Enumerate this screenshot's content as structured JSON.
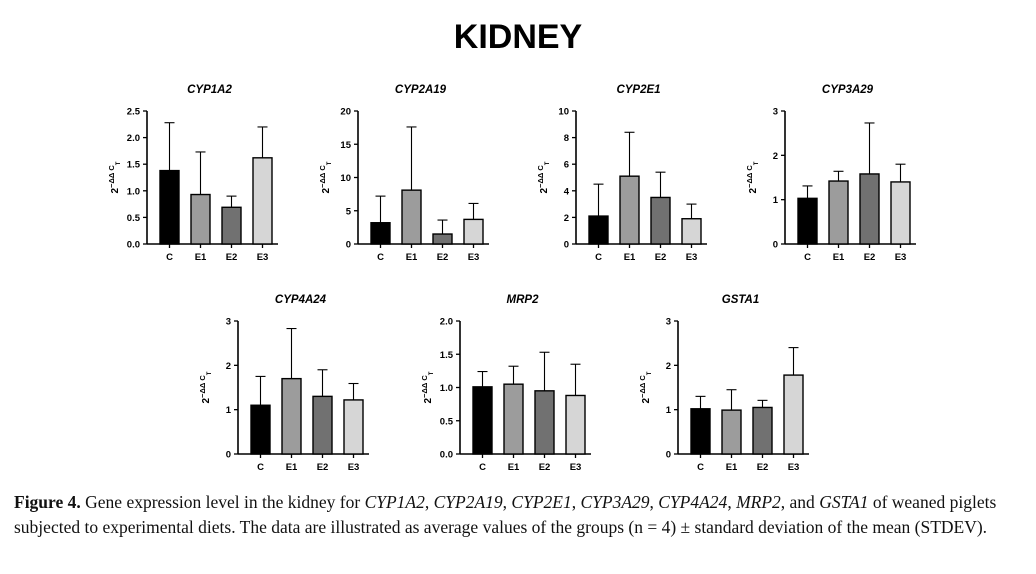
{
  "title": "KIDNEY",
  "y_axis_label_base": "2",
  "y_axis_label_exp": "−ΔΔ C",
  "y_axis_label_sub": "T",
  "caption": {
    "label": "Figure 4.",
    "text1": " Gene expression level in the kidney for ",
    "g1": "CYP1A2",
    "s1": ", ",
    "g2": "CYP2A19",
    "s2": ", ",
    "g3": "CYP2E1",
    "s3": ", ",
    "g4": "CYP3A29",
    "s4": ", ",
    "g5": "CYP4A24",
    "s5": ", ",
    "g6": "MRP2",
    "s6": ", and ",
    "g7": "GSTA1",
    "text2": " of weaned piglets subjected to experimental diets. The data are illustrated as average values of the groups (n = 4) ± standard deviation of the mean (STDEV)."
  },
  "colors": {
    "C": "#000000",
    "E1": "#9c9c9c",
    "E2": "#717171",
    "E3": "#d6d6d6"
  },
  "chart_data": [
    {
      "type": "bar",
      "title": "CYP1A2",
      "categories": [
        "C",
        "E1",
        "E2",
        "E3"
      ],
      "values": [
        1.38,
        0.93,
        0.69,
        1.62
      ],
      "errors": [
        0.9,
        0.8,
        0.21,
        0.58
      ],
      "ylim": [
        0,
        2.5
      ],
      "yticks": [
        "0.0",
        "0.5",
        "1.0",
        "1.5",
        "2.0",
        "2.5"
      ],
      "ylabel": "2−ΔΔ CT"
    },
    {
      "type": "bar",
      "title": "CYP2A19",
      "categories": [
        "C",
        "E1",
        "E2",
        "E3"
      ],
      "values": [
        3.2,
        8.1,
        1.5,
        3.7
      ],
      "errors": [
        4.0,
        9.5,
        2.1,
        2.4
      ],
      "ylim": [
        0,
        20
      ],
      "yticks": [
        "0",
        "5",
        "10",
        "15",
        "20"
      ],
      "ylabel": "2−ΔΔ CT"
    },
    {
      "type": "bar",
      "title": "CYP2E1",
      "categories": [
        "C",
        "E1",
        "E2",
        "E3"
      ],
      "values": [
        2.1,
        5.1,
        3.5,
        1.9
      ],
      "errors": [
        2.4,
        3.3,
        1.9,
        1.1
      ],
      "ylim": [
        0,
        10
      ],
      "yticks": [
        "0",
        "2",
        "4",
        "6",
        "8",
        "10"
      ],
      "ylabel": "2−ΔΔ CT"
    },
    {
      "type": "bar",
      "title": "CYP3A29",
      "categories": [
        "C",
        "E1",
        "E2",
        "E3"
      ],
      "values": [
        1.03,
        1.42,
        1.58,
        1.4
      ],
      "errors": [
        0.28,
        0.22,
        1.15,
        0.4
      ],
      "ylim": [
        0,
        3
      ],
      "yticks": [
        "0",
        "1",
        "2",
        "3"
      ],
      "ylabel": "2−ΔΔ CT"
    },
    {
      "type": "bar",
      "title": "CYP4A24",
      "categories": [
        "C",
        "E1",
        "E2",
        "E3"
      ],
      "values": [
        1.1,
        1.7,
        1.3,
        1.22
      ],
      "errors": [
        0.65,
        1.13,
        0.6,
        0.37
      ],
      "ylim": [
        0,
        3
      ],
      "yticks": [
        "0",
        "1",
        "2",
        "3"
      ],
      "ylabel": "2−ΔΔ CT"
    },
    {
      "type": "bar",
      "title": "MRP2",
      "categories": [
        "C",
        "E1",
        "E2",
        "E3"
      ],
      "values": [
        1.01,
        1.05,
        0.95,
        0.88
      ],
      "errors": [
        0.23,
        0.27,
        0.58,
        0.47
      ],
      "ylim": [
        0,
        2.0
      ],
      "yticks": [
        "0.0",
        "0.5",
        "1.0",
        "1.5",
        "2.0"
      ],
      "ylabel": "2−ΔΔ CT"
    },
    {
      "type": "bar",
      "title": "GSTA1",
      "categories": [
        "C",
        "E1",
        "E2",
        "E3"
      ],
      "values": [
        1.02,
        0.99,
        1.05,
        1.78
      ],
      "errors": [
        0.28,
        0.46,
        0.16,
        0.62
      ],
      "ylim": [
        0,
        3
      ],
      "yticks": [
        "0",
        "1",
        "2",
        "3"
      ],
      "ylabel": "2−ΔΔ CT"
    }
  ]
}
